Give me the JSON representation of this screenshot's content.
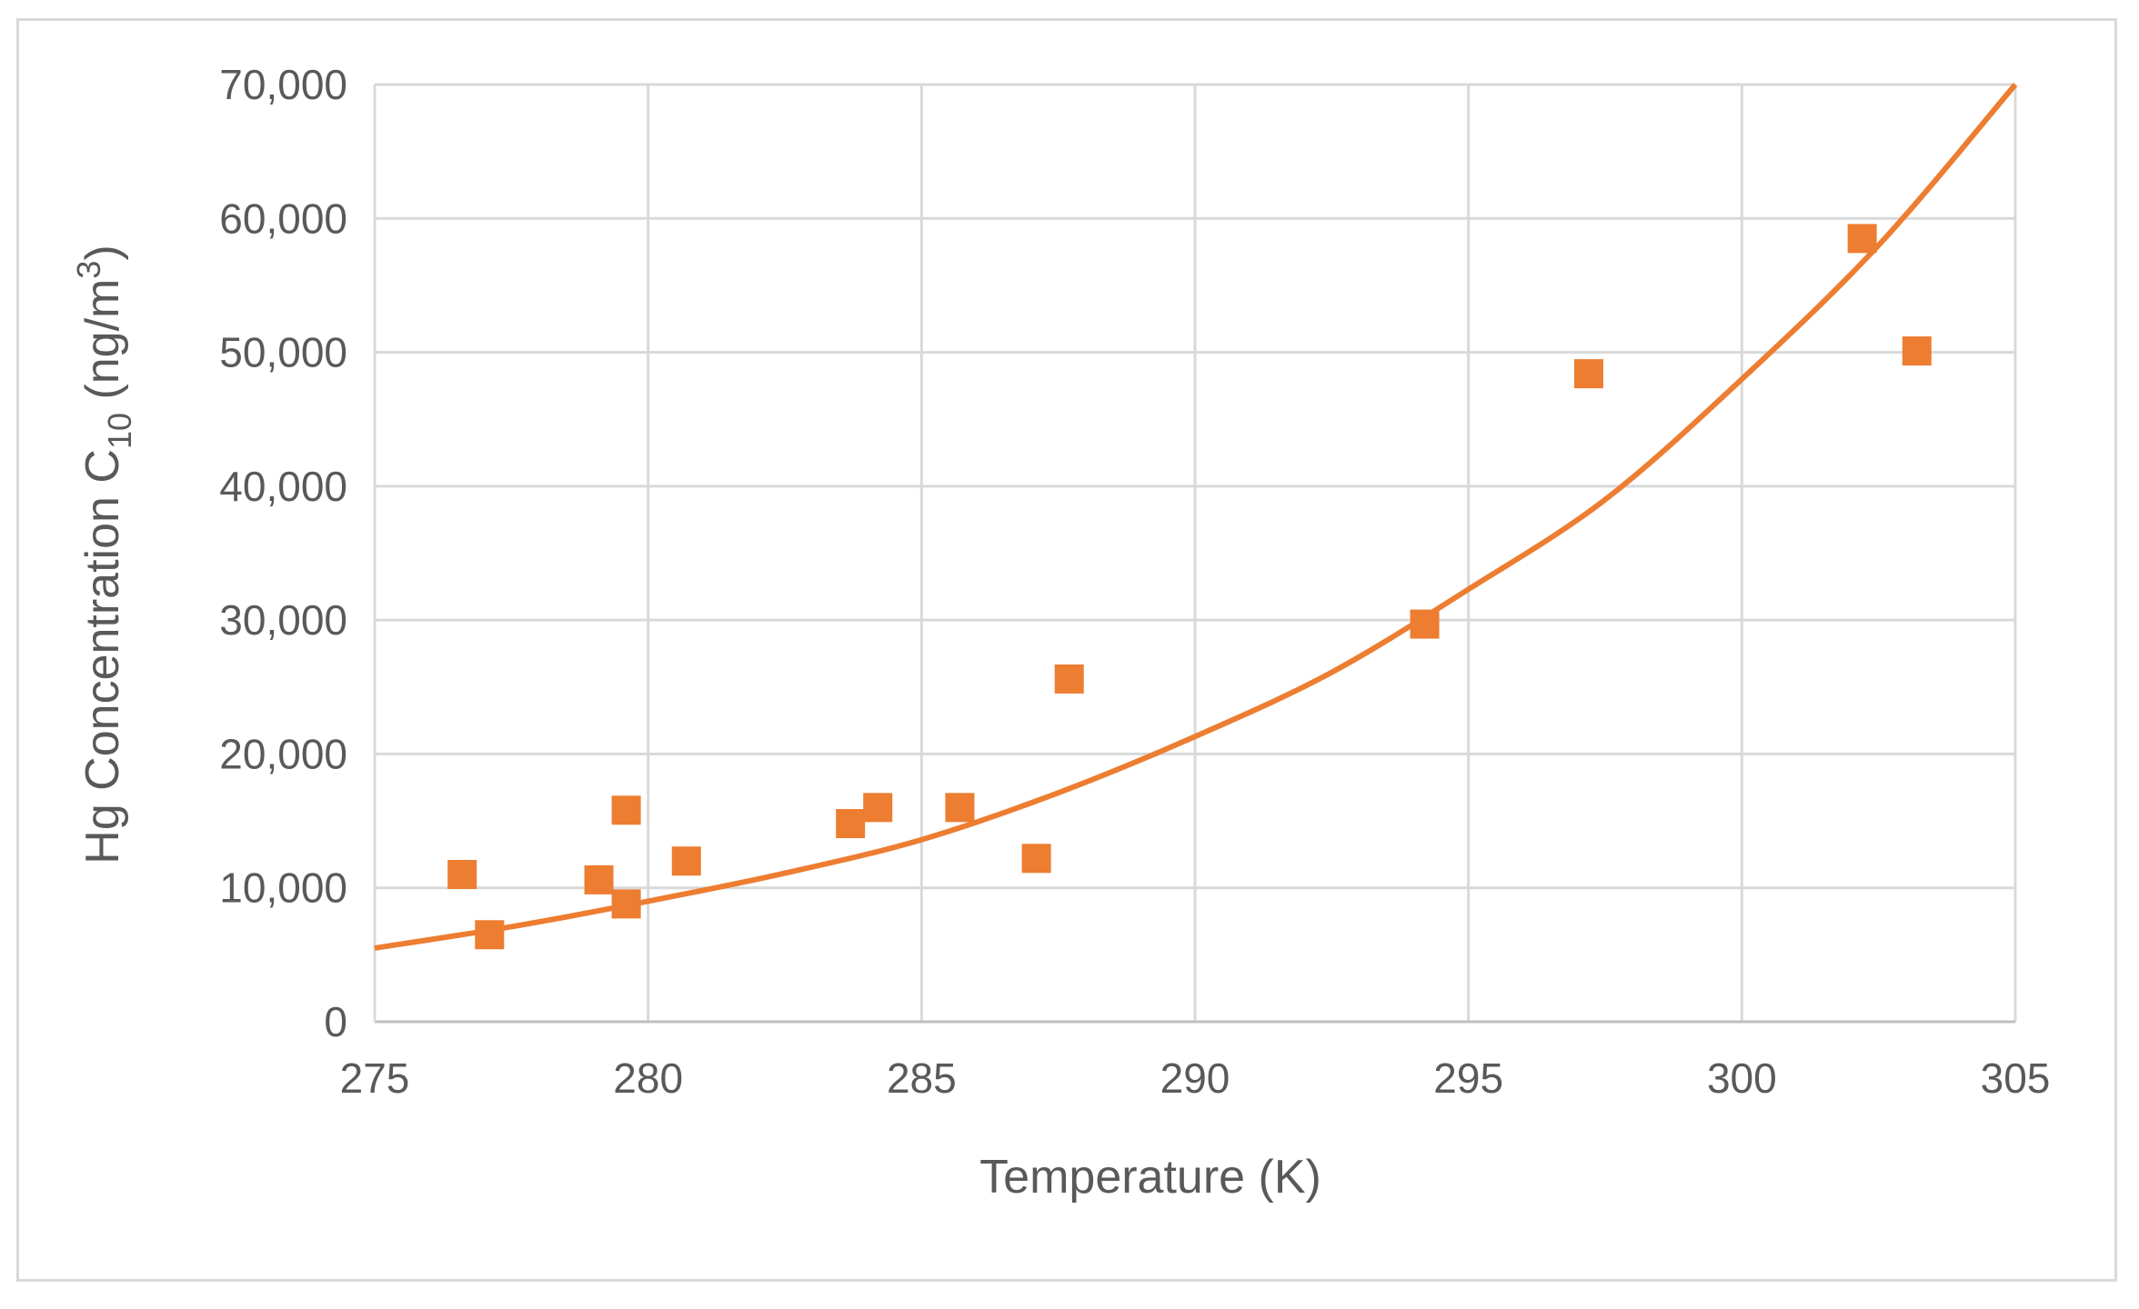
{
  "chart_data": {
    "type": "scatter",
    "xlabel": "Temperature (K)",
    "ylabel": {
      "prefix": "Hg Concentration  C",
      "subscript": "10",
      "middle": " (ng/m",
      "superscript": "3",
      "suffix": ")"
    },
    "xlim": [
      275,
      305
    ],
    "ylim": [
      0,
      70000
    ],
    "x_ticks": [
      275,
      280,
      285,
      290,
      295,
      300,
      305
    ],
    "x_tick_labels": [
      "275",
      "280",
      "285",
      "290",
      "295",
      "300",
      "305"
    ],
    "y_ticks": [
      0,
      10000,
      20000,
      30000,
      40000,
      50000,
      60000,
      70000
    ],
    "y_tick_labels": [
      "0",
      "10,000",
      "20,000",
      "30,000",
      "40,000",
      "50,000",
      "60,000",
      "70,000"
    ],
    "grid": true,
    "legend": "none",
    "color": "#ED7D31",
    "series": [
      {
        "marker": "square",
        "points": [
          {
            "x": 276.6,
            "y": 11000
          },
          {
            "x": 277.1,
            "y": 6500
          },
          {
            "x": 279.1,
            "y": 10600
          },
          {
            "x": 279.6,
            "y": 15800
          },
          {
            "x": 279.6,
            "y": 8800
          },
          {
            "x": 280.7,
            "y": 12000
          },
          {
            "x": 283.7,
            "y": 14800
          },
          {
            "x": 284.2,
            "y": 16000
          },
          {
            "x": 285.7,
            "y": 16000
          },
          {
            "x": 287.1,
            "y": 12200
          },
          {
            "x": 287.7,
            "y": 25600
          },
          {
            "x": 294.2,
            "y": 29700
          },
          {
            "x": 297.2,
            "y": 48400
          },
          {
            "x": 302.2,
            "y": 58500
          },
          {
            "x": 303.2,
            "y": 50100
          }
        ]
      },
      {
        "type": "line",
        "trendline": "exponential",
        "points": [
          {
            "x": 275,
            "y": 5500
          },
          {
            "x": 277.5,
            "y": 7100
          },
          {
            "x": 280,
            "y": 9000
          },
          {
            "x": 282.5,
            "y": 11100
          },
          {
            "x": 285,
            "y": 13600
          },
          {
            "x": 287.5,
            "y": 17100
          },
          {
            "x": 290,
            "y": 21300
          },
          {
            "x": 292.5,
            "y": 26100
          },
          {
            "x": 295,
            "y": 32300
          },
          {
            "x": 297.5,
            "y": 39000
          },
          {
            "x": 300,
            "y": 48000
          },
          {
            "x": 302.5,
            "y": 58000
          },
          {
            "x": 305,
            "y": 70000
          }
        ]
      }
    ]
  }
}
